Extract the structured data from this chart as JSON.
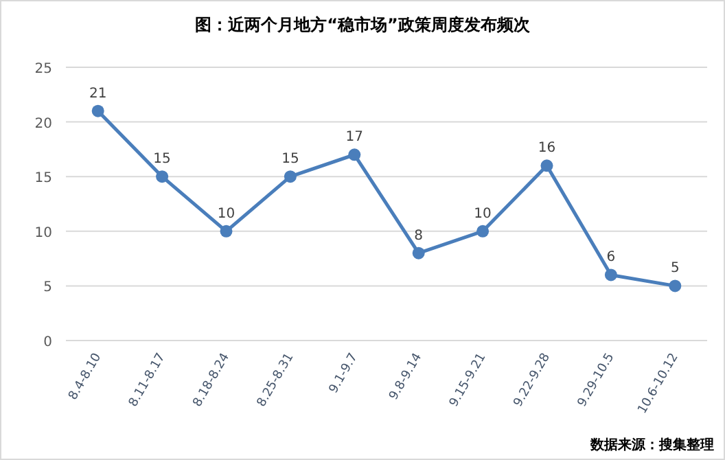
{
  "chart_data": {
    "type": "line",
    "title": "图：近两个月地方“稳市场”政策周度发布频次",
    "categories": [
      "8.4-8.10",
      "8.11-8.17",
      "8.18-8.24",
      "8.25-8.31",
      "9.1-9.7",
      "9.8-9.14",
      "9.15-9.21",
      "9.22-9.28",
      "9.29-10.5",
      "10.6-10.12"
    ],
    "series": [
      {
        "color": "#4a7ebb",
        "values": [
          21,
          15,
          10,
          15,
          17,
          8,
          10,
          16,
          6,
          5
        ]
      }
    ],
    "ylim": [
      0,
      25
    ],
    "yticks": [
      0,
      5,
      10,
      15,
      20,
      25
    ],
    "grid": "y",
    "marker": "circle",
    "line_style": "solid",
    "data_labels": true,
    "annotations": [
      "数据来源：搜集整理"
    ]
  }
}
